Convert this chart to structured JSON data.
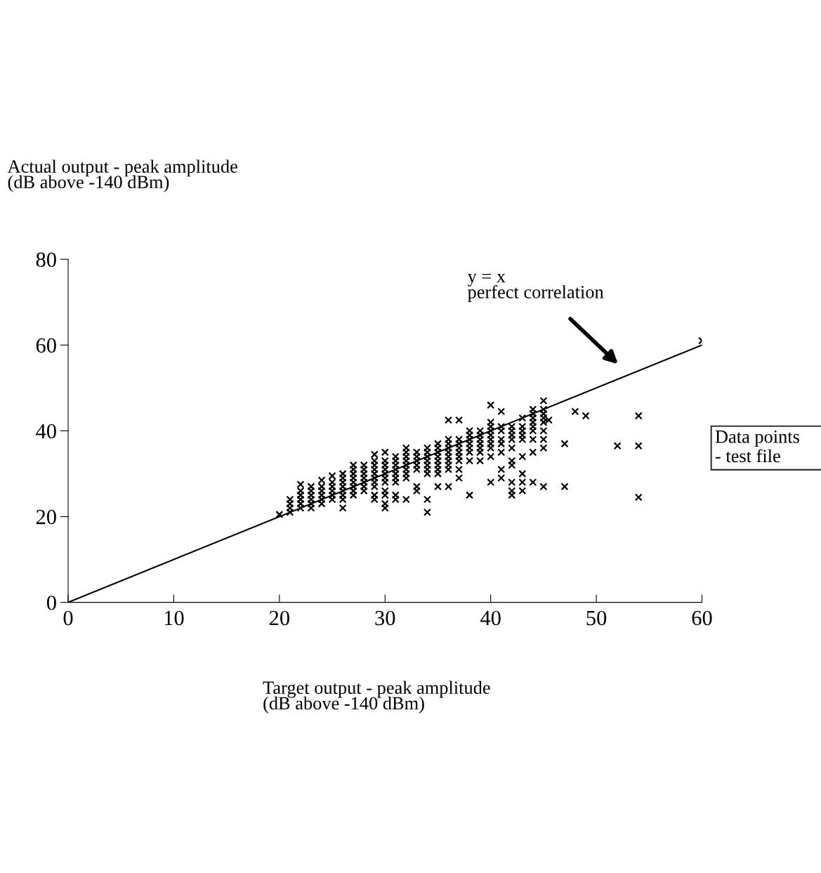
{
  "chart_data": {
    "type": "scatter",
    "xlabel": "Target output - peak amplitude\n(dB above -140 dBm)",
    "ylabel": "Actual output - peak amplitude\n(dB above -140 dBm)",
    "xlim": [
      0,
      60
    ],
    "xticks": [
      0,
      10,
      20,
      30,
      40,
      50,
      60
    ],
    "ylim": [
      0,
      80
    ],
    "yticks": [
      0,
      20,
      40,
      60,
      80
    ],
    "grid": false,
    "legend": "right",
    "annotations": [
      "y = x\nperfect correlation"
    ],
    "series": [
      {
        "name": "Data points\n- test file",
        "color": "#000000",
        "marker": "cross",
        "x": [
          20,
          21,
          21,
          21,
          21,
          22,
          22,
          22,
          22,
          22,
          22,
          23,
          23,
          23,
          23,
          23,
          23,
          24,
          24,
          24,
          24,
          24,
          24,
          25,
          25,
          25,
          25,
          25,
          25,
          26,
          26,
          26,
          26,
          26,
          26,
          26,
          26,
          27,
          27,
          27,
          27,
          27,
          27,
          27,
          27,
          28,
          28,
          28,
          28,
          28,
          28,
          28,
          29,
          29,
          29,
          29,
          29,
          29,
          29,
          29,
          29,
          29,
          30,
          30,
          30,
          30,
          30,
          30,
          30,
          30,
          30,
          30,
          30,
          31,
          31,
          31,
          31,
          31,
          31,
          31,
          31,
          31,
          32,
          32,
          32,
          32,
          32,
          32,
          32,
          32,
          32,
          33,
          33,
          33,
          33,
          33,
          33,
          33,
          34,
          34,
          34,
          34,
          34,
          34,
          34,
          34,
          34,
          35,
          35,
          35,
          35,
          35,
          35,
          35,
          35,
          35,
          36,
          36,
          36,
          36,
          36,
          36,
          36,
          36,
          36,
          36,
          37,
          37,
          37,
          37,
          37,
          37,
          37,
          37,
          37,
          38,
          38,
          38,
          38,
          38,
          38,
          38,
          38,
          39,
          39,
          39,
          39,
          39,
          39,
          39,
          40,
          40,
          40,
          40,
          40,
          40,
          40,
          40,
          40,
          40,
          41,
          41,
          41,
          41,
          41,
          41,
          41,
          41,
          42,
          42,
          42,
          42,
          42,
          42,
          42,
          42,
          42,
          42,
          43,
          43,
          43,
          43,
          43,
          43,
          43,
          43,
          43,
          44,
          44,
          44,
          44,
          44,
          44,
          44,
          44,
          44,
          45,
          45,
          45,
          45,
          45,
          45,
          45,
          45,
          45,
          45.5,
          47,
          47,
          48,
          49,
          52,
          54,
          54,
          54,
          60
        ],
        "values": [
          20.5,
          21,
          22,
          23,
          24,
          22,
          23,
          24,
          25,
          26,
          27.5,
          22,
          23,
          24,
          25,
          26,
          27,
          23,
          24,
          25,
          26,
          27,
          28.5,
          24,
          25,
          26,
          27,
          28,
          29.5,
          22,
          24,
          25,
          26,
          27,
          28,
          29,
          30,
          25,
          26,
          27,
          28,
          29,
          30,
          31,
          32,
          26,
          27,
          28,
          29,
          30,
          31,
          32,
          24,
          25,
          27,
          28,
          29,
          30,
          31,
          32,
          33,
          34.5,
          22,
          23,
          25,
          26,
          28,
          29,
          30,
          31,
          32,
          33,
          35,
          24,
          25,
          28,
          29,
          30,
          31,
          32,
          33,
          34,
          24,
          29,
          30,
          31,
          32,
          33,
          34,
          35,
          36,
          26,
          27,
          31,
          32,
          33,
          34,
          35,
          21,
          24,
          30,
          31,
          32,
          33,
          34,
          35,
          36,
          27,
          30,
          31,
          32,
          33,
          34,
          35,
          36,
          37,
          27,
          31,
          32,
          33,
          34,
          35,
          36,
          37,
          38,
          42.5,
          29,
          31,
          33,
          34,
          35,
          36,
          37,
          38,
          42.5,
          25,
          33,
          35,
          36,
          37,
          38,
          39,
          40,
          33,
          35,
          36,
          37,
          38,
          39,
          40,
          28,
          34,
          36,
          37,
          38,
          39,
          40,
          41,
          42,
          46,
          29,
          31,
          35,
          37,
          38,
          40,
          41,
          44.5,
          25,
          26,
          28,
          32,
          33,
          36,
          38,
          39,
          40,
          41,
          26,
          28,
          30,
          34,
          38,
          39,
          40,
          41,
          43,
          28,
          35,
          38,
          40,
          41,
          42,
          43,
          44,
          45,
          27,
          36,
          38,
          40,
          42,
          43,
          44,
          45,
          47,
          42.5,
          37,
          27,
          44.5,
          43.5,
          36.5,
          43.5,
          36.5,
          24.5,
          61
        ]
      },
      {
        "type": "line",
        "color": "#000000",
        "line_style": "solid",
        "x": [
          0,
          60
        ],
        "values": [
          0,
          60
        ]
      }
    ]
  }
}
